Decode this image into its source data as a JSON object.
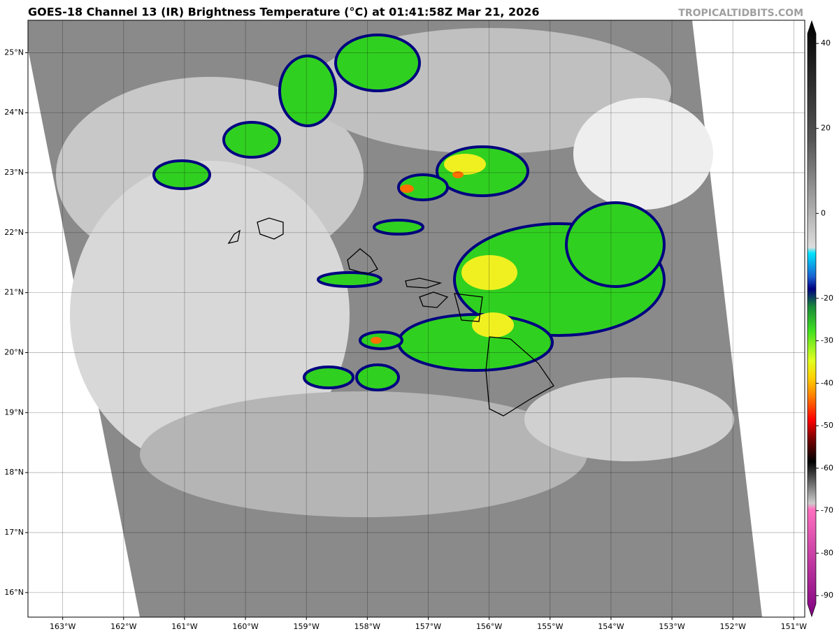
{
  "header": {
    "title": "GOES-18 Channel 13 (IR) Brightness Temperature (°C) at 01:41:58Z Mar 21, 2026",
    "watermark": "TROPICALTIDBITS.COM"
  },
  "map": {
    "lonlim": [
      -163.57,
      -150.82
    ],
    "latlim": [
      15.59,
      25.54
    ],
    "lon_ticks": [
      {
        "value": -163,
        "label": "163°W"
      },
      {
        "value": -162,
        "label": "162°W"
      },
      {
        "value": -161,
        "label": "161°W"
      },
      {
        "value": -160,
        "label": "160°W"
      },
      {
        "value": -159,
        "label": "159°W"
      },
      {
        "value": -158,
        "label": "158°W"
      },
      {
        "value": -157,
        "label": "157°W"
      },
      {
        "value": -156,
        "label": "156°W"
      },
      {
        "value": -155,
        "label": "155°W"
      },
      {
        "value": -154,
        "label": "154°W"
      },
      {
        "value": -153,
        "label": "153°W"
      },
      {
        "value": -152,
        "label": "152°W"
      },
      {
        "value": -151,
        "label": "151°W"
      }
    ],
    "lat_ticks": [
      {
        "value": 16,
        "label": "16°N"
      },
      {
        "value": 17,
        "label": "17°N"
      },
      {
        "value": 18,
        "label": "18°N"
      },
      {
        "value": 19,
        "label": "19°N"
      },
      {
        "value": 20,
        "label": "20°N"
      },
      {
        "value": 21,
        "label": "21°N"
      },
      {
        "value": 22,
        "label": "22°N"
      },
      {
        "value": 23,
        "label": "23°N"
      },
      {
        "value": 24,
        "label": "24°N"
      },
      {
        "value": 25,
        "label": "25°N"
      }
    ]
  },
  "colorbar": {
    "lim": [
      -94.9,
      45.3
    ],
    "ticks": [
      40,
      20,
      0,
      -20,
      -30,
      -40,
      -50,
      -60,
      -70,
      -80,
      -90
    ]
  }
}
